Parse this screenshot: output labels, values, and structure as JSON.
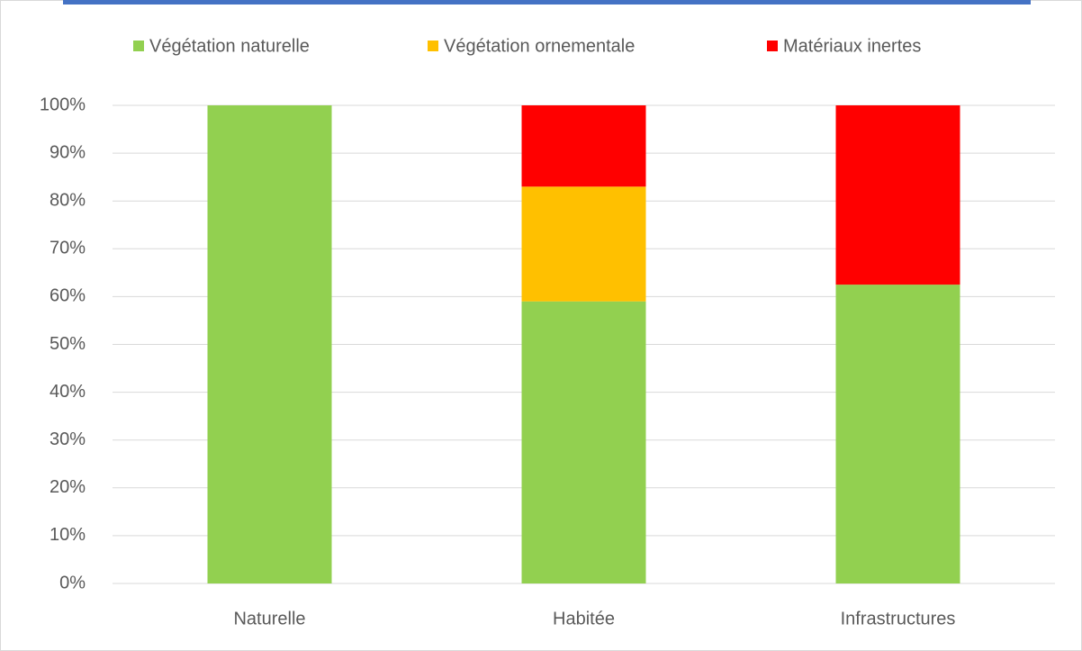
{
  "chart_data": {
    "type": "stacked_bar",
    "categories": [
      "Naturelle",
      "Habitée",
      "Infrastructures"
    ],
    "series": [
      {
        "name": "Végétation naturelle",
        "color": "#92d050",
        "values": [
          100,
          59,
          62.5
        ]
      },
      {
        "name": "Végétation ornementale",
        "color": "#ffc000",
        "values": [
          0,
          24,
          0
        ]
      },
      {
        "name": "Matériaux inertes",
        "color": "#ff0000",
        "values": [
          0,
          17,
          37.5
        ]
      }
    ],
    "ylim": [
      0,
      100
    ],
    "yticks": [
      {
        "value": 0,
        "label": "0%"
      },
      {
        "value": 10,
        "label": "10%"
      },
      {
        "value": 20,
        "label": "20%"
      },
      {
        "value": 30,
        "label": "30%"
      },
      {
        "value": 40,
        "label": "40%"
      },
      {
        "value": 50,
        "label": "50%"
      },
      {
        "value": 60,
        "label": "60%"
      },
      {
        "value": 70,
        "label": "70%"
      },
      {
        "value": 80,
        "label": "80%"
      },
      {
        "value": 90,
        "label": "90%"
      },
      {
        "value": 100,
        "label": "100%"
      }
    ],
    "grid": true,
    "legend": "top"
  }
}
